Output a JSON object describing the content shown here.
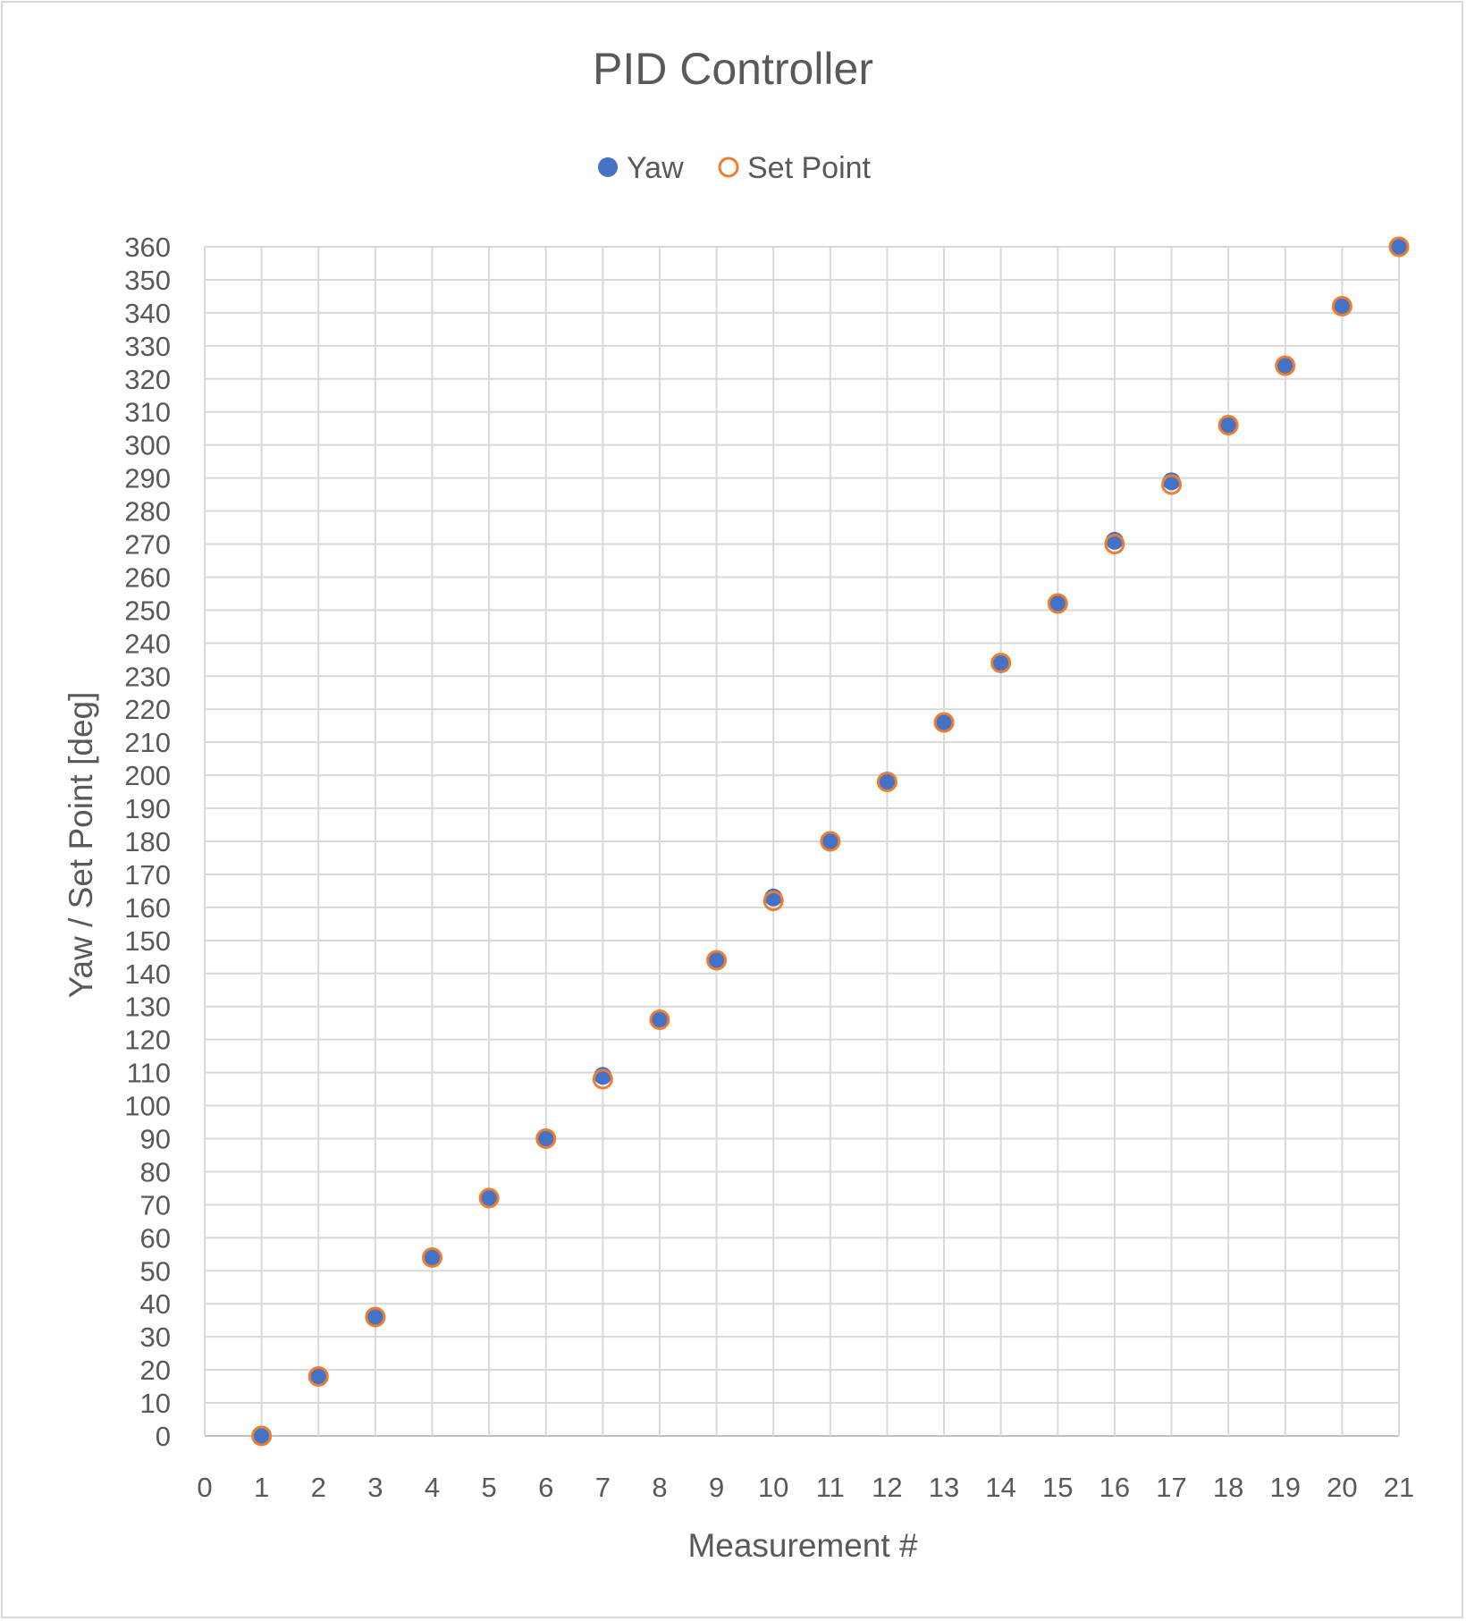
{
  "chart_data": {
    "type": "scatter",
    "title": "PID Controller",
    "xlabel": "Measurement #",
    "ylabel": "Yaw / Set Point [deg]",
    "xlim": [
      0,
      21
    ],
    "ylim": [
      0,
      360
    ],
    "x_ticks": [
      "0",
      "1",
      "2",
      "3",
      "4",
      "5",
      "6",
      "7",
      "8",
      "9",
      "10",
      "11",
      "12",
      "13",
      "14",
      "15",
      "16",
      "17",
      "18",
      "19",
      "20",
      "21"
    ],
    "y_ticks": [
      "0",
      "10",
      "20",
      "30",
      "40",
      "50",
      "60",
      "70",
      "80",
      "90",
      "100",
      "110",
      "120",
      "130",
      "140",
      "150",
      "160",
      "170",
      "180",
      "190",
      "200",
      "210",
      "220",
      "230",
      "240",
      "250",
      "260",
      "270",
      "280",
      "290",
      "300",
      "310",
      "320",
      "330",
      "340",
      "350",
      "360"
    ],
    "grid": true,
    "legend_position": "top",
    "series": [
      {
        "name": "Yaw",
        "marker": "filled-circle",
        "color": "#4472c4",
        "x": [
          1,
          2,
          3,
          4,
          5,
          6,
          7,
          8,
          9,
          10,
          11,
          12,
          13,
          14,
          15,
          16,
          17,
          18,
          19,
          20,
          21
        ],
        "y": [
          0,
          18,
          36,
          54,
          72,
          90,
          109,
          126,
          144,
          163,
          180,
          198,
          216,
          234,
          252,
          271,
          289,
          306,
          324,
          342,
          360
        ]
      },
      {
        "name": "Set Point",
        "marker": "hollow-circle",
        "color": "#ed7d31",
        "x": [
          1,
          2,
          3,
          4,
          5,
          6,
          7,
          8,
          9,
          10,
          11,
          12,
          13,
          14,
          15,
          16,
          17,
          18,
          19,
          20,
          21
        ],
        "y": [
          0,
          18,
          36,
          54,
          72,
          90,
          108,
          126,
          144,
          162,
          180,
          198,
          216,
          234,
          252,
          270,
          288,
          306,
          324,
          342,
          360
        ]
      }
    ]
  }
}
